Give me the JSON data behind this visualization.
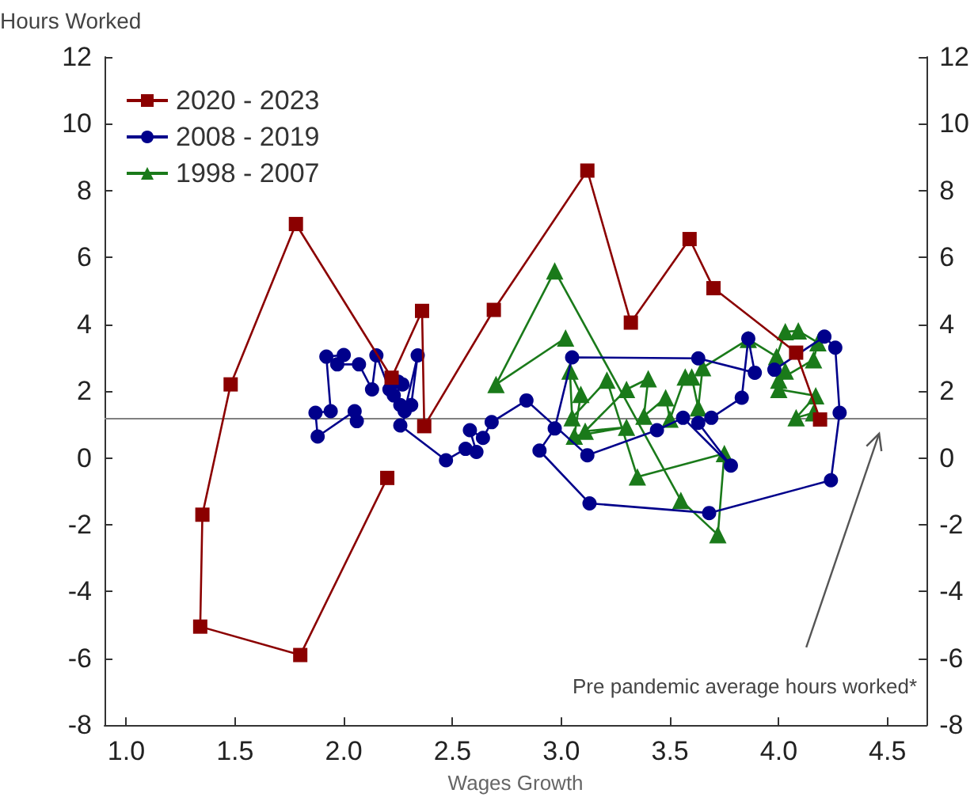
{
  "chart_data": {
    "type": "line",
    "xlabel": "Wages Growth",
    "ylabel": "Hours Worked",
    "xlim": [
      0.9,
      4.68
    ],
    "xticks": [
      {
        "value": 1,
        "label": "1.0"
      },
      1.5,
      {
        "value": 2,
        "label": "2.0"
      },
      2.5,
      {
        "value": 3,
        "label": "3.0"
      },
      3.5,
      {
        "value": 4,
        "label": "4.0"
      },
      4.5
    ],
    "ylim": [
      -8,
      12
    ],
    "yticks": [
      -8,
      -6,
      -4,
      -2,
      0,
      2,
      4,
      6,
      8,
      10,
      12
    ],
    "y2lim": [
      -8,
      12
    ],
    "y2ticks": [
      -8,
      -6,
      -4,
      -2,
      0,
      2,
      4,
      6,
      8,
      10,
      12
    ],
    "grid": false,
    "legend": "top left",
    "line_style": "solid",
    "ref_lines": [
      {
        "axis": "y",
        "value": 1.2,
        "color": "#808080"
      }
    ],
    "annotations": [
      "Pre pandemic average hours worked*"
    ],
    "series": [
      {
        "name": "2020 - 2023",
        "color": "#8b0000",
        "marker": "square",
        "x": [
          2.2,
          1.8,
          1.34,
          1.35,
          1.48,
          1.78,
          2.22,
          2.36,
          2.37,
          2.69,
          3.12,
          3.32,
          3.59,
          3.7,
          4.08,
          4.19
        ],
        "values": [
          -0.6,
          -5.9,
          -5.05,
          -1.7,
          2.2,
          7.0,
          2.4,
          4.4,
          0.95,
          4.43,
          8.6,
          4.05,
          6.55,
          5.08,
          3.15,
          1.15
        ]
      },
      {
        "name": "2008 - 2019",
        "color": "#00008b",
        "marker": "circle",
        "x": [
          3.98,
          4.21,
          4.26,
          4.28,
          4.24,
          3.68,
          3.13,
          2.9,
          2.97,
          3.05,
          3.63,
          3.89,
          3.86,
          3.83,
          3.69,
          3.63,
          3.78,
          3.56,
          3.44,
          3.12,
          2.84,
          2.68,
          2.64,
          2.58,
          2.61,
          2.56,
          2.47,
          2.26,
          2.31,
          2.34,
          2.28,
          2.26,
          2.23,
          2.27,
          2.25,
          2.21,
          2.15,
          2.13,
          2.07,
          1.97,
          2.0,
          1.92,
          1.94,
          1.87,
          1.88,
          2.05,
          2.06
        ],
        "values": [
          2.64,
          3.63,
          3.3,
          1.35,
          -0.67,
          -1.65,
          -1.36,
          0.22,
          0.88,
          3.01,
          2.98,
          2.55,
          3.57,
          1.8,
          1.2,
          1.05,
          -0.23,
          1.2,
          0.83,
          0.08,
          1.72,
          1.07,
          0.6,
          0.83,
          0.18,
          0.27,
          -0.07,
          0.97,
          1.58,
          3.07,
          1.4,
          1.58,
          1.87,
          2.2,
          2.28,
          2.05,
          3.07,
          2.05,
          2.8,
          2.8,
          3.08,
          3.03,
          1.4,
          1.35,
          0.64,
          1.4,
          1.1
        ]
      },
      {
        "name": "1998 - 2007",
        "color": "#1a7a1a",
        "marker": "triangle",
        "x": [
          3.02,
          2.7,
          2.97,
          3.55,
          3.72,
          3.75,
          3.35,
          3.21,
          3.05,
          3.04,
          3.09,
          3.06,
          3.3,
          3.11,
          3.3,
          3.4,
          3.38,
          3.48,
          3.5,
          3.57,
          3.6,
          3.63,
          3.65,
          3.86,
          3.99,
          4.03,
          4.09,
          4.18,
          4.16,
          4.0,
          4.03,
          4.0,
          4.17,
          4.08,
          4.16
        ],
        "values": [
          3.59,
          2.2,
          5.6,
          -1.27,
          -2.3,
          0.13,
          -0.57,
          2.33,
          1.2,
          2.6,
          1.9,
          0.65,
          0.92,
          0.8,
          2.05,
          2.37,
          1.25,
          1.8,
          1.16,
          2.42,
          2.42,
          1.5,
          2.7,
          3.55,
          3.03,
          3.78,
          3.8,
          3.45,
          2.94,
          2.33,
          2.6,
          2.05,
          1.86,
          1.2,
          1.35
        ]
      }
    ]
  }
}
